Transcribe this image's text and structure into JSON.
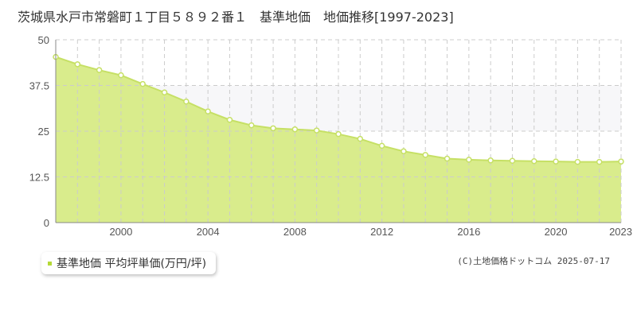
{
  "title": "茨城県水戸市常磐町１丁目５８９２番１　基準地価　地価推移[1997-2023]",
  "legend": {
    "label": "基準地価 平均坪単価(万円/坪)"
  },
  "credit": "(C)土地価格ドットコム 2025-07-17",
  "colors": {
    "fill": "#d9ec8c",
    "line": "#c6e065",
    "point_fill": "#ffffff",
    "upper_band": "#f7f7f9",
    "grid": "#cccccc",
    "legend_marker": "#b4d936"
  },
  "chart_data": {
    "type": "area",
    "title": "茨城県水戸市常磐町１丁目５８９２番１　基準地価　地価推移[1997-2023]",
    "xlabel": "",
    "ylabel": "",
    "x": [
      1997,
      1998,
      1999,
      2000,
      2001,
      2002,
      2003,
      2004,
      2005,
      2006,
      2007,
      2008,
      2009,
      2010,
      2011,
      2012,
      2013,
      2014,
      2015,
      2016,
      2017,
      2018,
      2019,
      2020,
      2021,
      2022,
      2023
    ],
    "series": [
      {
        "name": "基準地価 平均坪単価(万円/坪)",
        "values": [
          45.3,
          43.3,
          41.7,
          40.3,
          37.9,
          35.6,
          33.1,
          30.4,
          28.1,
          26.6,
          25.8,
          25.5,
          25.2,
          24.2,
          22.9,
          21.0,
          19.5,
          18.5,
          17.5,
          17.2,
          17.0,
          16.9,
          16.8,
          16.7,
          16.6,
          16.6,
          16.7
        ]
      }
    ],
    "xlim": [
      1997,
      2023
    ],
    "ylim": [
      0,
      50
    ],
    "y_ticks": [
      0,
      12.5,
      25,
      37.5,
      50
    ],
    "y_tick_labels": [
      "0",
      "12.5",
      "25",
      "37.5",
      "50"
    ],
    "x_ticks": [
      2000,
      2004,
      2008,
      2012,
      2016,
      2020,
      2023
    ],
    "x_tick_labels": [
      "2000",
      "2004",
      "2008",
      "2012",
      "2016",
      "2020",
      "2023"
    ],
    "grid": true,
    "legend_position": "bottom-left"
  }
}
